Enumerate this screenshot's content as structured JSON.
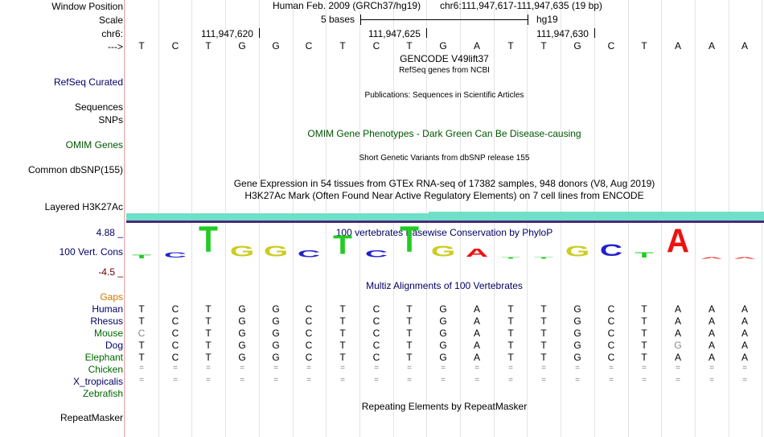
{
  "header": {
    "window_position_label": "Window Position",
    "assembly": "Human Feb. 2009 (GRCh37/hg19)",
    "position": "chr6:111,947,617-111,947,635 (19 bp)",
    "scale_label": "Scale",
    "scale_text": "5 bases",
    "scale_db": "hg19",
    "chr_label": "chr6:",
    "coord_1": "111,947,620",
    "coord_2": "111,947,625",
    "coord_3": "111,947,630",
    "strand_label": "--->"
  },
  "sequence": [
    "T",
    "C",
    "T",
    "G",
    "G",
    "C",
    "T",
    "C",
    "T",
    "G",
    "A",
    "T",
    "T",
    "G",
    "C",
    "T",
    "A",
    "A",
    "A"
  ],
  "tracks": {
    "gencode_title": "GENCODE V49lift37",
    "refseq_title": "RefSeq genes from NCBI",
    "refseq_label": "RefSeq Curated",
    "publications_title": "Publications: Sequences in Scientific Articles",
    "sequences_label": "Sequences",
    "snps_label": "SNPs",
    "omim_title": "OMIM Gene Phenotypes - Dark Green Can Be Disease-causing",
    "omim_label": "OMIM Genes",
    "dbsnp_title": "Short Genetic Variants from dbSNP release 155",
    "dbsnp_label": "Common dbSNP(155)",
    "gtex_title": "Gene Expression in 54 tissues from GTEx RNA-seq of 17382 samples, 948 donors (V8, Aug 2019)",
    "h3k27ac_title": "H3K27Ac Mark (Often Found Near Active Regulatory Elements) on 7 cell lines from ENCODE",
    "h3k27ac_label": "Layered H3K27Ac",
    "phylop_title": "100 vertebrates Basewise Conservation by PhyloP",
    "cons_label": "100 Vert. Cons",
    "cons_max": "4.88 _",
    "cons_min": "-4.5 _",
    "multiz_title": "Multiz Alignments of 100 Vertebrates",
    "repeat_title": "Repeating Elements by RepeatMasker",
    "repeat_label": "RepeatMasker"
  },
  "conservation": [
    0.2,
    0.3,
    1.5,
    0.6,
    0.6,
    0.4,
    1.1,
    0.4,
    1.5,
    0.6,
    0.5,
    0.1,
    0.0,
    0.6,
    0.7,
    0.3,
    1.4,
    0.1,
    0.0
  ],
  "colors": {
    "A": "#ee1111",
    "C": "#2222cc",
    "G": "#cccc22",
    "T": "#22cc22",
    "navy": "#000066",
    "green": "#005500",
    "orange": "#cc7700",
    "brown": "#660000"
  },
  "alignments": {
    "gaps_label": "Gaps",
    "species": [
      {
        "name": "Human",
        "color": "#000066",
        "bases": [
          "T",
          "C",
          "T",
          "G",
          "G",
          "C",
          "T",
          "C",
          "T",
          "G",
          "A",
          "T",
          "T",
          "G",
          "C",
          "T",
          "A",
          "A",
          "A"
        ]
      },
      {
        "name": "Rhesus",
        "color": "#000066",
        "bases": [
          "T",
          "C",
          "T",
          "G",
          "G",
          "C",
          "T",
          "C",
          "T",
          "G",
          "A",
          "T",
          "T",
          "G",
          "C",
          "T",
          "A",
          "A",
          "A"
        ]
      },
      {
        "name": "Mouse",
        "color": "#006600",
        "bases": [
          "C",
          "C",
          "T",
          "G",
          "G",
          "C",
          "T",
          "C",
          "T",
          "G",
          "A",
          "T",
          "T",
          "G",
          "C",
          "T",
          "A",
          "A",
          "A"
        ]
      },
      {
        "name": "Dog",
        "color": "#000066",
        "bases": [
          "T",
          "C",
          "T",
          "G",
          "G",
          "C",
          "T",
          "C",
          "T",
          "G",
          "A",
          "T",
          "T",
          "G",
          "C",
          "T",
          "G",
          "A",
          "A"
        ]
      },
      {
        "name": "Elephant",
        "color": "#006600",
        "bases": [
          "T",
          "C",
          "T",
          "G",
          "G",
          "C",
          "T",
          "C",
          "T",
          "G",
          "A",
          "T",
          "T",
          "G",
          "C",
          "T",
          "A",
          "A",
          "A"
        ]
      },
      {
        "name": "Chicken",
        "color": "#006600",
        "bases": [
          "=",
          "=",
          "=",
          "=",
          "=",
          "=",
          "=",
          "=",
          "=",
          "=",
          "=",
          "=",
          "=",
          "=",
          "=",
          "=",
          "=",
          "=",
          "="
        ]
      },
      {
        "name": "X_tropicalis",
        "color": "#000066",
        "bases": [
          "=",
          "=",
          "=",
          "=",
          "=",
          "=",
          "=",
          "=",
          "=",
          "=",
          "=",
          "=",
          "=",
          "=",
          "=",
          "=",
          "=",
          "=",
          "="
        ]
      },
      {
        "name": "Zebrafish",
        "color": "#006600",
        "bases": []
      }
    ]
  }
}
